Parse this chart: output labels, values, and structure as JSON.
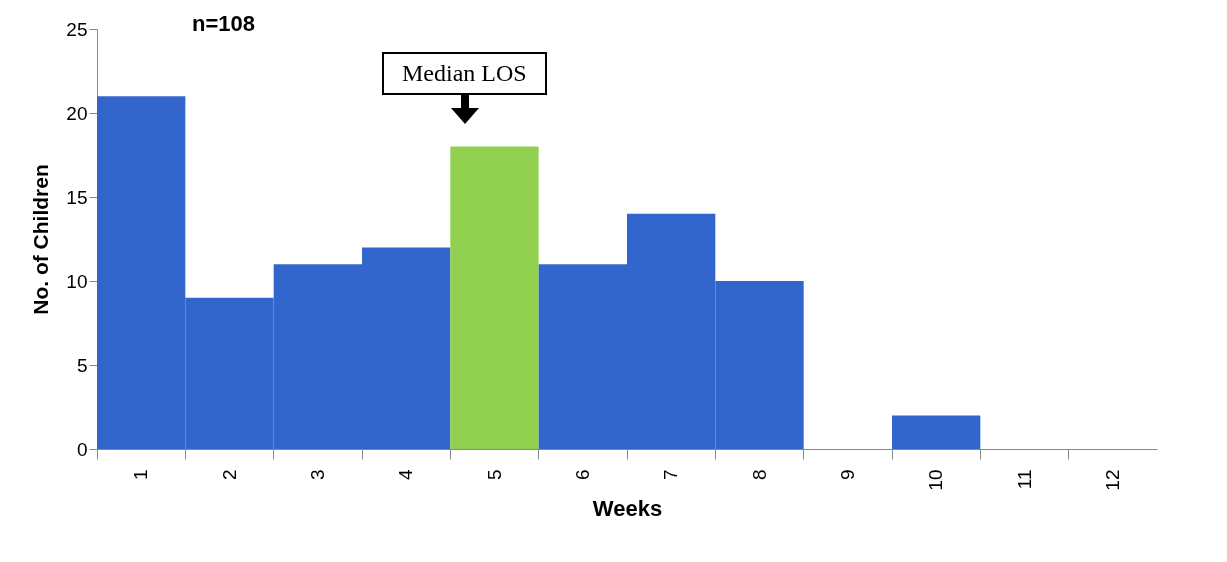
{
  "chart_data": {
    "type": "bar",
    "categories": [
      "1",
      "2",
      "3",
      "4",
      "5",
      "6",
      "7",
      "8",
      "9",
      "10",
      "11",
      "12"
    ],
    "values": [
      21,
      9,
      11,
      12,
      18,
      11,
      14,
      10,
      0,
      2,
      0,
      0
    ],
    "colors": [
      "#3366cc",
      "#3366cc",
      "#3366cc",
      "#3366cc",
      "#92d050",
      "#3366cc",
      "#3366cc",
      "#3366cc",
      "#3366cc",
      "#3366cc",
      "#3366cc",
      "#3366cc"
    ],
    "xlabel": "Weeks",
    "ylabel": "No. of Children",
    "ylim": [
      0,
      25
    ],
    "yticks": [
      0,
      5,
      10,
      15,
      20,
      25
    ],
    "annotations": [
      "n=108",
      {
        "text": "Median LOS",
        "x": "5",
        "y": 18
      }
    ]
  }
}
